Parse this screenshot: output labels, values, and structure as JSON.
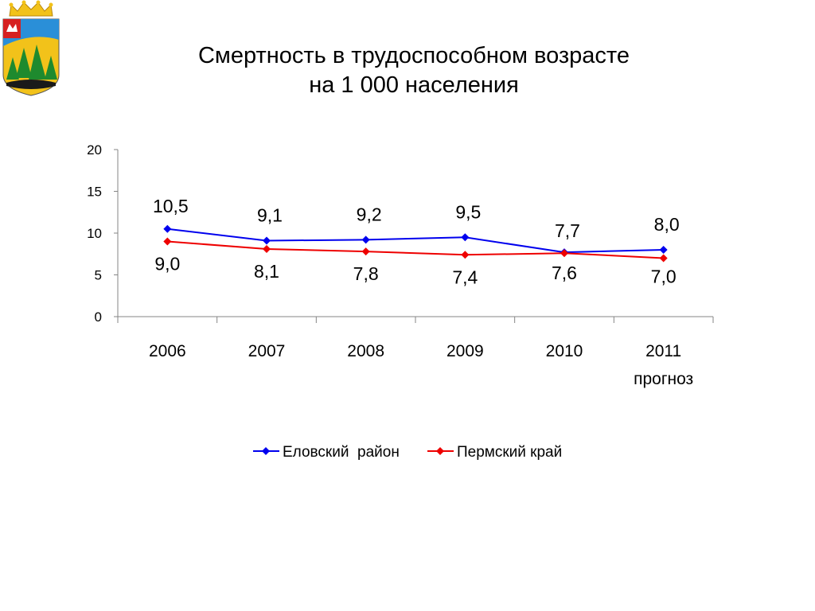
{
  "header": {
    "title_line1": "Смертность в трудоспособном возрасте",
    "title_line2": "на 1 000 населения"
  },
  "logo": {
    "icon": "coat-of-arms-icon"
  },
  "chart_data": {
    "type": "line",
    "categories": [
      [
        "2006"
      ],
      [
        "2007"
      ],
      [
        "2008"
      ],
      [
        "2009"
      ],
      [
        "2010"
      ],
      [
        "2011",
        "прогноз"
      ]
    ],
    "series": [
      {
        "name": "Еловский  район",
        "color": "#0000ee",
        "values": [
          10.5,
          9.1,
          9.2,
          9.5,
          7.7,
          8.0
        ],
        "labels": [
          "10,5",
          "9,1",
          "9,2",
          "9,5",
          "7,7",
          "8,0"
        ]
      },
      {
        "name": "Пермский край",
        "color": "#ee0000",
        "values": [
          9.0,
          8.1,
          7.8,
          7.4,
          7.6,
          7.0
        ],
        "labels": [
          "9,0",
          "8,1",
          "7,8",
          "7,4",
          "7,6",
          "7,0"
        ]
      }
    ],
    "ylim": [
      0,
      20
    ],
    "yticks": [
      0,
      5,
      10,
      15,
      20
    ],
    "grid": false,
    "legend": "bottom"
  }
}
